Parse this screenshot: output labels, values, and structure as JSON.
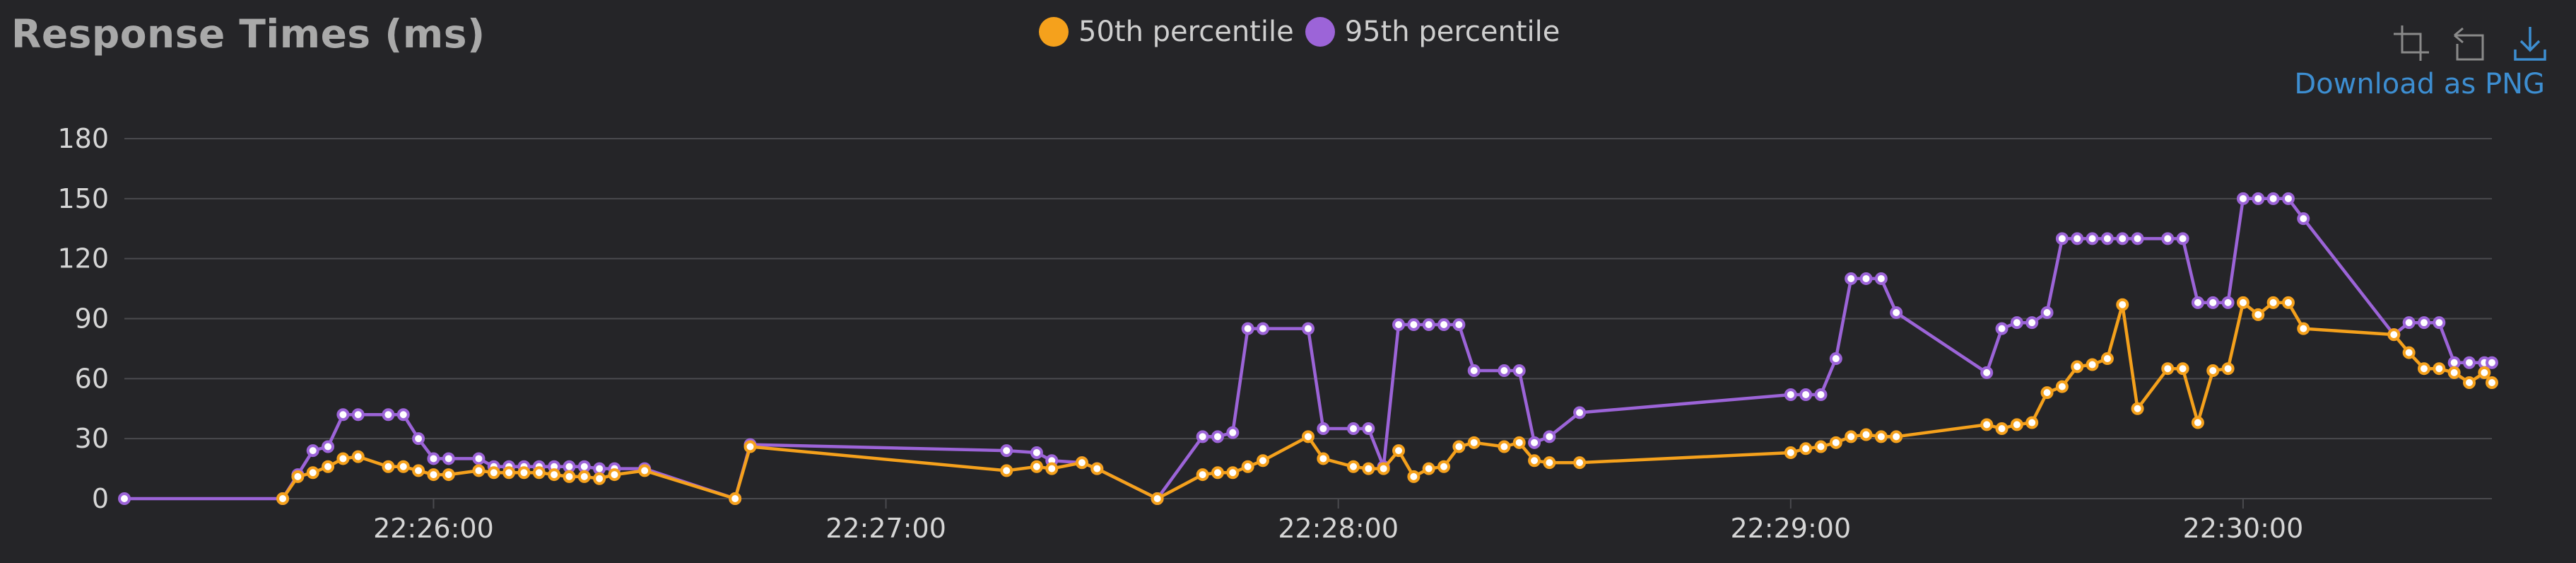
{
  "title": "Response Times (ms)",
  "toolbar": {
    "download_label": "Download as PNG",
    "icons": [
      "zoom-select-icon",
      "zoom-reset-icon",
      "download-icon"
    ]
  },
  "colors": {
    "background": "#252528",
    "grid": "#4a4a4e",
    "axis_text": "#d6d6d6",
    "p50": "#f5a11c",
    "p95": "#9c64d8"
  },
  "chart_data": {
    "type": "line",
    "title": "Response Times (ms)",
    "xlabel": "",
    "ylabel": "",
    "ylim": [
      0,
      180
    ],
    "yticks": [
      "0",
      "30",
      "60",
      "90",
      "120",
      "150",
      "180"
    ],
    "xlim": [
      "22:25:19",
      "22:30:33"
    ],
    "xticks": [
      "22:26:00",
      "22:27:00",
      "22:28:00",
      "22:29:00",
      "22:30:00"
    ],
    "grid": true,
    "legend_position": "top-center",
    "series": [
      {
        "name": "50th percentile",
        "color": "#f5a11c",
        "points": [
          [
            "22:25:40",
            0
          ],
          [
            "22:25:42",
            11
          ],
          [
            "22:25:44",
            13
          ],
          [
            "22:25:46",
            16
          ],
          [
            "22:25:48",
            20
          ],
          [
            "22:25:50",
            21
          ],
          [
            "22:25:54",
            16
          ],
          [
            "22:25:56",
            16
          ],
          [
            "22:25:58",
            14
          ],
          [
            "22:26:00",
            12
          ],
          [
            "22:26:02",
            12
          ],
          [
            "22:26:06",
            14
          ],
          [
            "22:26:08",
            13
          ],
          [
            "22:26:10",
            13
          ],
          [
            "22:26:12",
            13
          ],
          [
            "22:26:14",
            13
          ],
          [
            "22:26:16",
            12
          ],
          [
            "22:26:18",
            11
          ],
          [
            "22:26:20",
            11
          ],
          [
            "22:26:22",
            10
          ],
          [
            "22:26:24",
            12
          ],
          [
            "22:26:28",
            14
          ],
          [
            "22:26:40",
            0
          ],
          [
            "22:26:42",
            26
          ],
          [
            "22:27:16",
            14
          ],
          [
            "22:27:20",
            16
          ],
          [
            "22:27:22",
            15
          ],
          [
            "22:27:26",
            18
          ],
          [
            "22:27:28",
            15
          ],
          [
            "22:27:36",
            0
          ],
          [
            "22:27:42",
            12
          ],
          [
            "22:27:44",
            13
          ],
          [
            "22:27:46",
            13
          ],
          [
            "22:27:48",
            16
          ],
          [
            "22:27:50",
            19
          ],
          [
            "22:27:56",
            31
          ],
          [
            "22:27:58",
            20
          ],
          [
            "22:28:02",
            16
          ],
          [
            "22:28:04",
            15
          ],
          [
            "22:28:06",
            15
          ],
          [
            "22:28:08",
            24
          ],
          [
            "22:28:10",
            11
          ],
          [
            "22:28:12",
            15
          ],
          [
            "22:28:14",
            16
          ],
          [
            "22:28:16",
            26
          ],
          [
            "22:28:18",
            28
          ],
          [
            "22:28:22",
            26
          ],
          [
            "22:28:24",
            28
          ],
          [
            "22:28:26",
            19
          ],
          [
            "22:28:28",
            18
          ],
          [
            "22:28:32",
            18
          ],
          [
            "22:29:00",
            23
          ],
          [
            "22:29:02",
            25
          ],
          [
            "22:29:04",
            26
          ],
          [
            "22:29:06",
            28
          ],
          [
            "22:29:08",
            31
          ],
          [
            "22:29:10",
            32
          ],
          [
            "22:29:12",
            31
          ],
          [
            "22:29:14",
            31
          ],
          [
            "22:29:26",
            37
          ],
          [
            "22:29:28",
            35
          ],
          [
            "22:29:30",
            37
          ],
          [
            "22:29:32",
            38
          ],
          [
            "22:29:34",
            53
          ],
          [
            "22:29:36",
            56
          ],
          [
            "22:29:38",
            66
          ],
          [
            "22:29:40",
            67
          ],
          [
            "22:29:42",
            70
          ],
          [
            "22:29:44",
            97
          ],
          [
            "22:29:46",
            45
          ],
          [
            "22:29:50",
            65
          ],
          [
            "22:29:52",
            65
          ],
          [
            "22:29:54",
            38
          ],
          [
            "22:29:56",
            64
          ],
          [
            "22:29:58",
            65
          ],
          [
            "22:30:00",
            98
          ],
          [
            "22:30:02",
            92
          ],
          [
            "22:30:04",
            98
          ],
          [
            "22:30:06",
            98
          ],
          [
            "22:30:08",
            85
          ],
          [
            "22:30:20",
            82
          ],
          [
            "22:30:22",
            73
          ],
          [
            "22:30:24",
            65
          ],
          [
            "22:30:26",
            65
          ],
          [
            "22:30:28",
            63
          ],
          [
            "22:30:30",
            58
          ],
          [
            "22:30:32",
            63
          ],
          [
            "22:30:33",
            58
          ]
        ]
      },
      {
        "name": "95th percentile",
        "color": "#9c64d8",
        "points": [
          [
            "22:25:19",
            0
          ],
          [
            "22:25:40",
            0
          ],
          [
            "22:25:42",
            12
          ],
          [
            "22:25:44",
            24
          ],
          [
            "22:25:46",
            26
          ],
          [
            "22:25:48",
            42
          ],
          [
            "22:25:50",
            42
          ],
          [
            "22:25:54",
            42
          ],
          [
            "22:25:56",
            42
          ],
          [
            "22:25:58",
            30
          ],
          [
            "22:26:00",
            20
          ],
          [
            "22:26:02",
            20
          ],
          [
            "22:26:06",
            20
          ],
          [
            "22:26:08",
            16
          ],
          [
            "22:26:10",
            16
          ],
          [
            "22:26:12",
            16
          ],
          [
            "22:26:14",
            16
          ],
          [
            "22:26:16",
            16
          ],
          [
            "22:26:18",
            16
          ],
          [
            "22:26:20",
            16
          ],
          [
            "22:26:22",
            15
          ],
          [
            "22:26:24",
            15
          ],
          [
            "22:26:28",
            15
          ],
          [
            "22:26:40",
            0
          ],
          [
            "22:26:42",
            27
          ],
          [
            "22:27:16",
            24
          ],
          [
            "22:27:20",
            23
          ],
          [
            "22:27:22",
            19
          ],
          [
            "22:27:26",
            18
          ],
          [
            "22:27:28",
            15
          ],
          [
            "22:27:36",
            0
          ],
          [
            "22:27:42",
            31
          ],
          [
            "22:27:44",
            31
          ],
          [
            "22:27:46",
            33
          ],
          [
            "22:27:48",
            85
          ],
          [
            "22:27:50",
            85
          ],
          [
            "22:27:56",
            85
          ],
          [
            "22:27:58",
            35
          ],
          [
            "22:28:02",
            35
          ],
          [
            "22:28:04",
            35
          ],
          [
            "22:28:06",
            16
          ],
          [
            "22:28:08",
            87
          ],
          [
            "22:28:10",
            87
          ],
          [
            "22:28:12",
            87
          ],
          [
            "22:28:14",
            87
          ],
          [
            "22:28:16",
            87
          ],
          [
            "22:28:18",
            64
          ],
          [
            "22:28:22",
            64
          ],
          [
            "22:28:24",
            64
          ],
          [
            "22:28:26",
            28
          ],
          [
            "22:28:28",
            31
          ],
          [
            "22:28:32",
            43
          ],
          [
            "22:29:00",
            52
          ],
          [
            "22:29:02",
            52
          ],
          [
            "22:29:04",
            52
          ],
          [
            "22:29:06",
            70
          ],
          [
            "22:29:08",
            110
          ],
          [
            "22:29:10",
            110
          ],
          [
            "22:29:12",
            110
          ],
          [
            "22:29:14",
            93
          ],
          [
            "22:29:26",
            63
          ],
          [
            "22:29:28",
            85
          ],
          [
            "22:29:30",
            88
          ],
          [
            "22:29:32",
            88
          ],
          [
            "22:29:34",
            93
          ],
          [
            "22:29:36",
            130
          ],
          [
            "22:29:38",
            130
          ],
          [
            "22:29:40",
            130
          ],
          [
            "22:29:42",
            130
          ],
          [
            "22:29:44",
            130
          ],
          [
            "22:29:46",
            130
          ],
          [
            "22:29:50",
            130
          ],
          [
            "22:29:52",
            130
          ],
          [
            "22:29:54",
            98
          ],
          [
            "22:29:56",
            98
          ],
          [
            "22:29:58",
            98
          ],
          [
            "22:30:00",
            150
          ],
          [
            "22:30:02",
            150
          ],
          [
            "22:30:04",
            150
          ],
          [
            "22:30:06",
            150
          ],
          [
            "22:30:08",
            140
          ],
          [
            "22:30:20",
            82
          ],
          [
            "22:30:22",
            88
          ],
          [
            "22:30:24",
            88
          ],
          [
            "22:30:26",
            88
          ],
          [
            "22:30:28",
            68
          ],
          [
            "22:30:30",
            68
          ],
          [
            "22:30:32",
            68
          ],
          [
            "22:30:33",
            68
          ]
        ]
      }
    ]
  }
}
